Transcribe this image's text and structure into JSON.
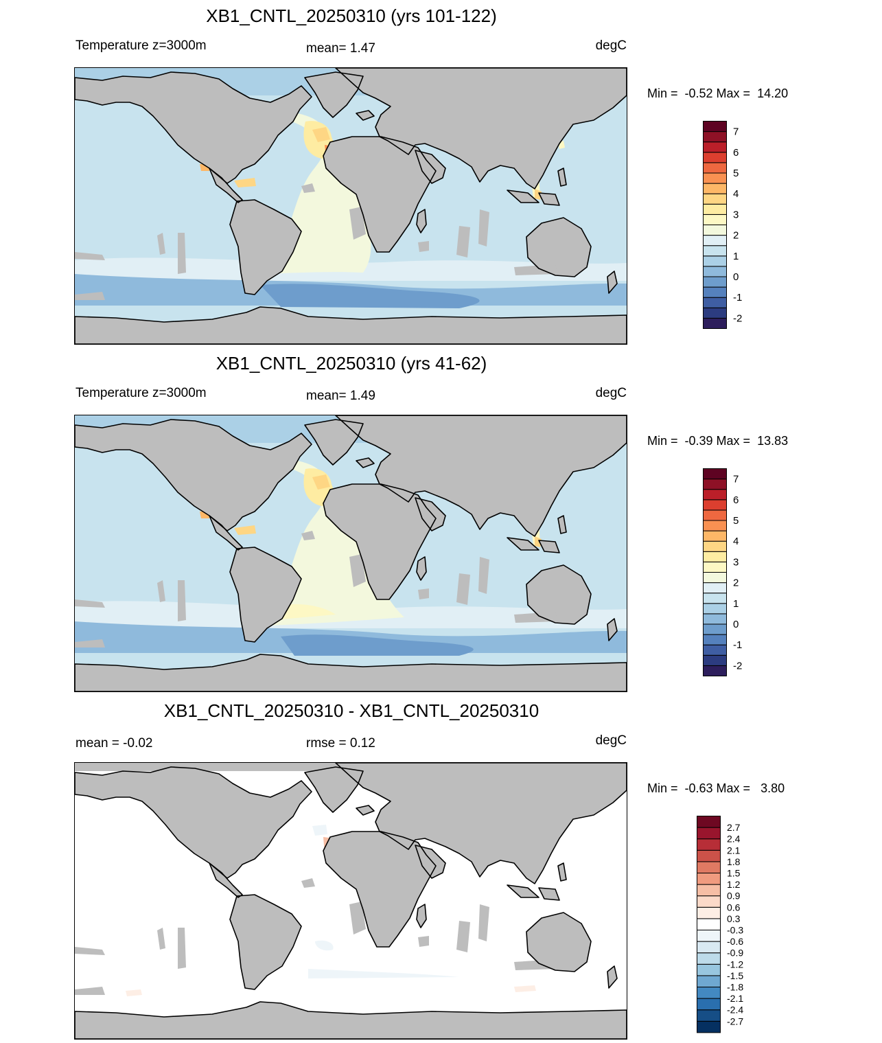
{
  "colors": {
    "land": "#bdbdbd",
    "full_field_palette": [
      "#2d1e5c",
      "#2c3c80",
      "#3f5ea3",
      "#5581bd",
      "#6e9dcc",
      "#8fbadc",
      "#abd0e6",
      "#c8e3ee",
      "#e1eff5",
      "#f3f8dd",
      "#fdf8c4",
      "#feeca2",
      "#fed684",
      "#fdb767",
      "#f99152",
      "#ee6840",
      "#dc3f2f",
      "#bb1f29",
      "#8e1126",
      "#5e0322"
    ],
    "difference_palette": [
      "#053061",
      "#164e86",
      "#2a6fae",
      "#4389c1",
      "#6fa8d1",
      "#98c6df",
      "#bddbea",
      "#d9e9f2",
      "#eef5f9",
      "#ffffff",
      "#fdeee5",
      "#fbd9c8",
      "#f6bea5",
      "#f09b7f",
      "#e07a63",
      "#cc5249",
      "#b72e37",
      "#99152d",
      "#6e0822"
    ]
  },
  "panels": [
    {
      "title": "XB1_CNTL_20250310 (yrs 101-122)",
      "left_label": "Temperature z=3000m",
      "center_label": "mean=   1.47",
      "units": "degC",
      "minmax": "Min =  -0.52 Max =  14.20",
      "colorbar": [
        "-2",
        "-1",
        "0",
        "1",
        "2",
        "3",
        "4",
        "5",
        "6",
        "7"
      ]
    },
    {
      "title": "XB1_CNTL_20250310 (yrs 41-62)",
      "left_label": "Temperature z=3000m",
      "center_label": "mean=   1.49",
      "units": "degC",
      "minmax": "Min =  -0.39 Max =  13.83",
      "colorbar": [
        "-2",
        "-1",
        "0",
        "1",
        "2",
        "3",
        "4",
        "5",
        "6",
        "7"
      ]
    },
    {
      "title": "XB1_CNTL_20250310 - XB1_CNTL_20250310",
      "left_label": "mean =  -0.02",
      "center_label": "rmse =   0.12",
      "units": "degC",
      "minmax": "Min =  -0.63 Max =   3.80",
      "colorbar": [
        "-2.7",
        "-2.4",
        "-2.1",
        "-1.8",
        "-1.5",
        "-1.2",
        "-0.9",
        "-0.6",
        "-0.3",
        "0.3",
        "0.6",
        "0.9",
        "1.2",
        "1.5",
        "1.8",
        "2.1",
        "2.4",
        "2.7"
      ]
    }
  ]
}
